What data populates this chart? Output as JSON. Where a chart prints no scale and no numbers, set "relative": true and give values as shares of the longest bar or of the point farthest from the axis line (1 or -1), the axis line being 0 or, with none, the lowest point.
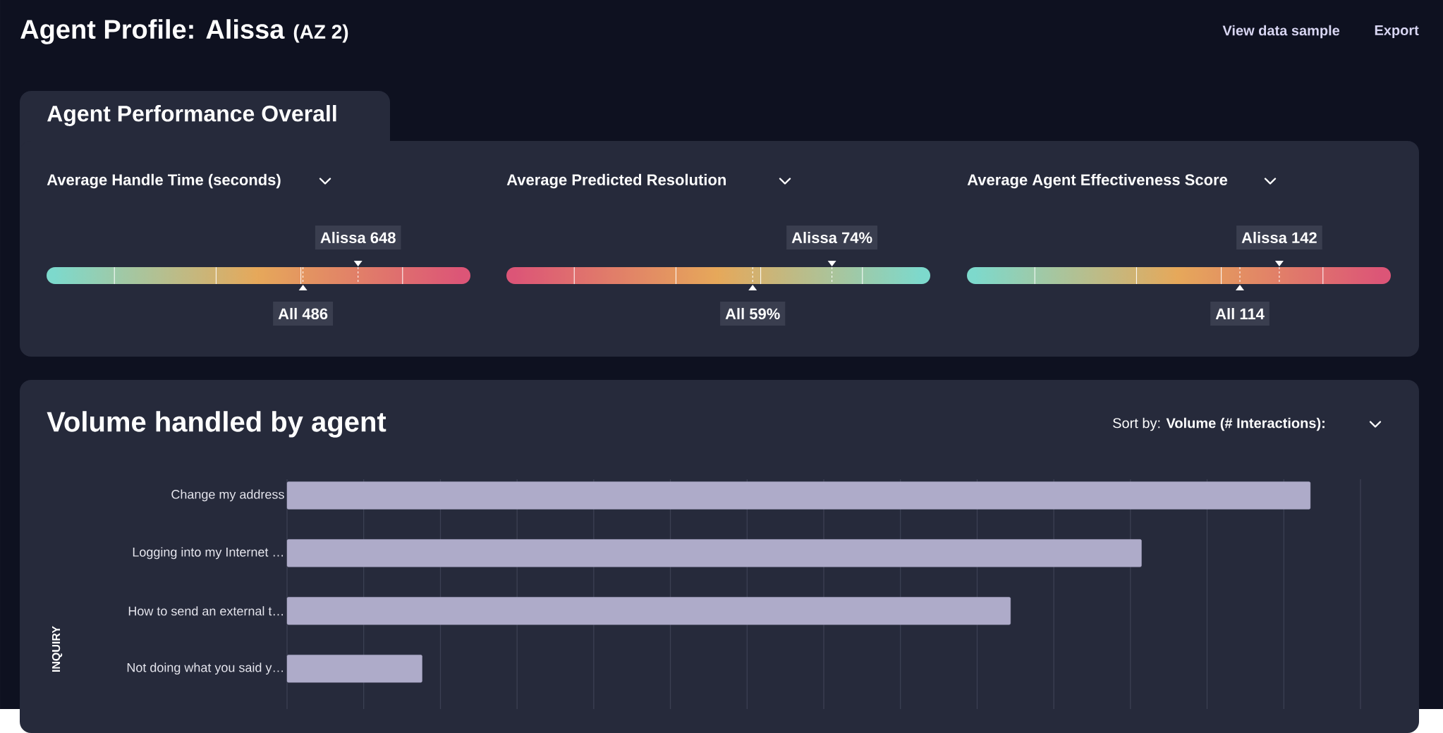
{
  "chart_data": [
    {
      "type": "other",
      "title": "Agent Profile: Alissa",
      "subtitle": "(AZ 2)",
      "annotations": [
        "View data sample",
        "Export",
        "Agent Performance Overall"
      ]
    },
    {
      "type": "other",
      "title": "Average Handle Time (seconds)",
      "annotations": [
        "Alissa 648",
        "All 486"
      ]
    },
    {
      "type": "other",
      "title": "Average Predicted Resolution",
      "annotations": [
        "Alissa 74%",
        "All 59%"
      ]
    },
    {
      "type": "other",
      "title": "Average Agent Effectiveness Score",
      "annotations": [
        "Alissa 142",
        "All 114"
      ]
    },
    {
      "type": "bar",
      "orientation": "horizontal",
      "relative": true,
      "title": "Volume handled by agent",
      "annotations": [
        "Sort by: **Volume (# Interactions):**"
      ],
      "ylabel": "INQUIRY",
      "categories": [
        "Change my address",
        "Logging into my Internet …",
        "How to send an external t…",
        "Not doing what you said y…"
      ],
      "values": [
        1,
        0.835,
        0.707,
        0.132
      ],
      "color": "#aeabc9",
      "grid": "x"
    }
  ]
}
